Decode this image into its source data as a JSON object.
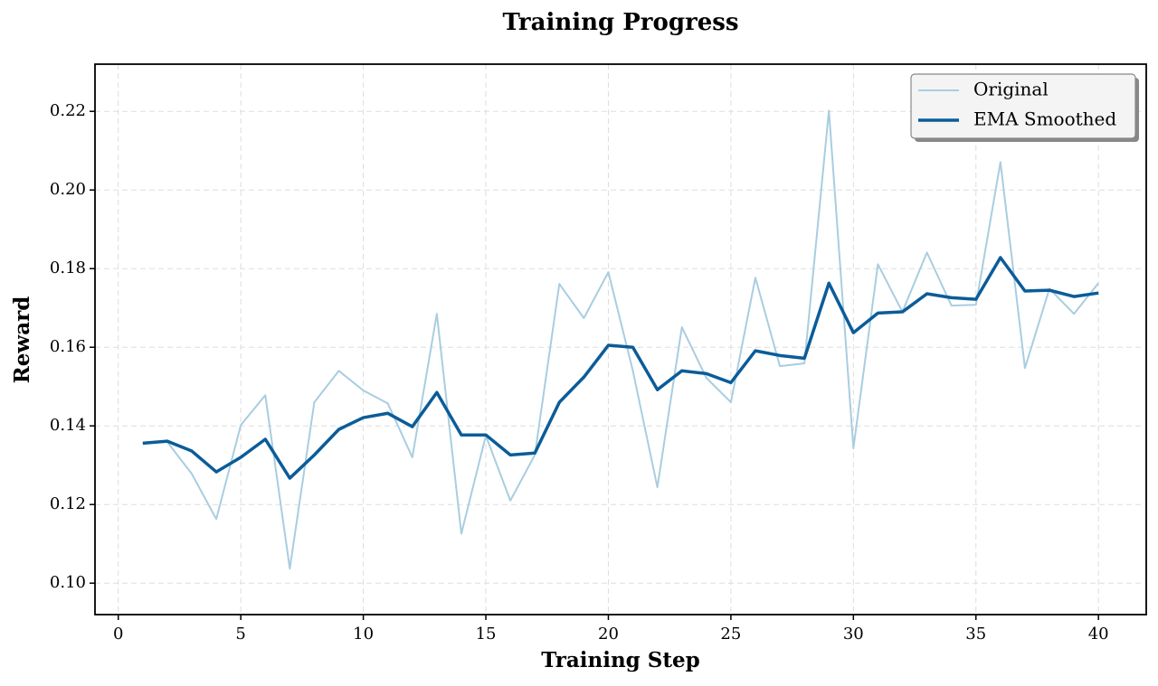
{
  "chart_data": {
    "type": "line",
    "title": "Training Progress",
    "x_label": "Training Step",
    "y_label": "Reward",
    "x": [
      1,
      2,
      3,
      4,
      5,
      6,
      7,
      8,
      9,
      10,
      11,
      12,
      13,
      14,
      15,
      16,
      17,
      18,
      19,
      20,
      21,
      22,
      23,
      24,
      25,
      26,
      27,
      28,
      29,
      30,
      31,
      32,
      33,
      34,
      35,
      36,
      37,
      38,
      39,
      40
    ],
    "series": [
      {
        "name": "Original",
        "color": "#a9cde0",
        "width": 2,
        "values": [
          0.1356,
          0.1359,
          0.1278,
          0.1163,
          0.1402,
          0.1478,
          0.1037,
          0.146,
          0.154,
          0.149,
          0.1457,
          0.132,
          0.1685,
          0.1126,
          0.1375,
          0.121,
          0.1326,
          0.1761,
          0.1674,
          0.1791,
          0.154,
          0.1244,
          0.1651,
          0.1522,
          0.146,
          0.1777,
          0.1552,
          0.1559,
          0.2202,
          0.1343,
          0.1811,
          0.169,
          0.1841,
          0.1706,
          0.1708,
          0.2071,
          0.1547,
          0.1749,
          0.1685,
          0.1763
        ]
      },
      {
        "name": "EMA Smoothed",
        "color": "#0b5c99",
        "width": 3.5,
        "values": [
          0.1356,
          0.1361,
          0.1336,
          0.1283,
          0.132,
          0.1366,
          0.1267,
          0.1326,
          0.1391,
          0.1421,
          0.1432,
          0.1398,
          0.1485,
          0.1377,
          0.1377,
          0.1326,
          0.1331,
          0.146,
          0.1524,
          0.1605,
          0.16,
          0.1492,
          0.154,
          0.1533,
          0.151,
          0.1591,
          0.1579,
          0.1572,
          0.1763,
          0.1637,
          0.1687,
          0.169,
          0.1736,
          0.1726,
          0.1722,
          0.1828,
          0.1743,
          0.1745,
          0.1729,
          0.1738
        ]
      }
    ],
    "xlim": [
      -0.95,
      41.95
    ],
    "ylim": [
      0.092,
      0.232
    ],
    "xticks": [
      0,
      5,
      10,
      15,
      20,
      25,
      30,
      35,
      40
    ],
    "yticks": [
      {
        "value": 0.1,
        "label": "0.10"
      },
      0.12,
      0.14,
      0.16,
      0.18,
      {
        "value": 0.2,
        "label": "0.20"
      },
      0.22
    ],
    "grid": true,
    "legend": "upper right"
  }
}
